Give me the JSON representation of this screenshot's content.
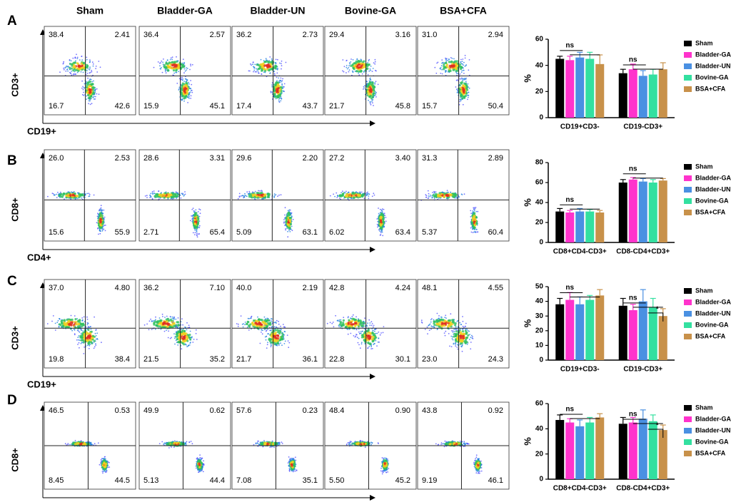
{
  "column_headers": [
    "Sham",
    "Bladder-GA",
    "Bladder-UN",
    "Bovine-GA",
    "BSA+CFA"
  ],
  "panels": [
    {
      "label": "A",
      "flow_y_label": "CD3+",
      "flow_x_label": "CD19+",
      "quadrants": [
        [
          "38.4",
          "2.41",
          "16.7",
          "42.6"
        ],
        [
          "36.4",
          "2.57",
          "15.9",
          "45.1"
        ],
        [
          "36.2",
          "2.73",
          "17.4",
          "43.7"
        ],
        [
          "29.4",
          "3.16",
          "21.7",
          "45.8"
        ],
        [
          "31.0",
          "2.94",
          "15.7",
          "50.4"
        ]
      ]
    },
    {
      "label": "B",
      "flow_y_label": "CD8+",
      "flow_x_label": "CD4+",
      "quadrants": [
        [
          "26.0",
          "2.53",
          "15.6",
          "55.9"
        ],
        [
          "28.6",
          "3.31",
          "2.71",
          "65.4"
        ],
        [
          "29.6",
          "2.20",
          "5.09",
          "63.1"
        ],
        [
          "27.2",
          "3.40",
          "6.02",
          "63.4"
        ],
        [
          "31.3",
          "2.89",
          "5.37",
          "60.4"
        ]
      ]
    },
    {
      "label": "C",
      "flow_y_label": "CD3+",
      "flow_x_label": "CD19+",
      "quadrants": [
        [
          "37.0",
          "4.80",
          "19.8",
          "38.4"
        ],
        [
          "36.2",
          "7.10",
          "21.5",
          "35.2"
        ],
        [
          "40.0",
          "2.19",
          "21.7",
          "36.1"
        ],
        [
          "42.8",
          "4.24",
          "22.8",
          "30.1"
        ],
        [
          "48.1",
          "4.55",
          "23.0",
          "24.3"
        ]
      ]
    },
    {
      "label": "D",
      "flow_y_label": "CD8+",
      "flow_x_label": "CD4+",
      "quadrants": [
        [
          "46.5",
          "0.53",
          "8.45",
          "44.5"
        ],
        [
          "49.9",
          "0.62",
          "5.13",
          "44.4"
        ],
        [
          "57.6",
          "0.23",
          "7.08",
          "35.1"
        ],
        [
          "48.4",
          "0.90",
          "5.50",
          "45.2"
        ],
        [
          "43.8",
          "0.92",
          "9.19",
          "46.1"
        ]
      ]
    }
  ],
  "chart_data": [
    {
      "type": "bar",
      "y_label": "%",
      "categories": [
        "CD19+CD3-",
        "CD19-CD3+"
      ],
      "ylim": [
        0,
        60
      ],
      "yticks": [
        0,
        20,
        40,
        60
      ],
      "annotations": [
        "ns",
        "ns"
      ],
      "series": [
        {
          "name": "Sham",
          "color": "#000000",
          "values": [
            45,
            34
          ],
          "errors": [
            2,
            3
          ]
        },
        {
          "name": "Bladder-GA",
          "color": "#ff33cc",
          "values": [
            44,
            37
          ],
          "errors": [
            3,
            4
          ]
        },
        {
          "name": "Bladder-UN",
          "color": "#4a90e2",
          "values": [
            46,
            32
          ],
          "errors": [
            4,
            4
          ]
        },
        {
          "name": "Bovine-GA",
          "color": "#33e0a0",
          "values": [
            45,
            33
          ],
          "errors": [
            5,
            4
          ]
        },
        {
          "name": "BSA+CFA",
          "color": "#c8914a",
          "values": [
            41,
            37
          ],
          "errors": [
            7,
            5
          ]
        }
      ]
    },
    {
      "type": "bar",
      "y_label": "%",
      "categories": [
        "CD8+CD4-CD3+",
        "CD8-CD4+CD3+"
      ],
      "ylim": [
        0,
        80
      ],
      "yticks": [
        0,
        20,
        40,
        60,
        80
      ],
      "annotations": [
        "ns",
        "ns"
      ],
      "series": [
        {
          "name": "Sham",
          "color": "#000000",
          "values": [
            31,
            60
          ],
          "errors": [
            3,
            3
          ]
        },
        {
          "name": "Bladder-GA",
          "color": "#ff33cc",
          "values": [
            30,
            63
          ],
          "errors": [
            2,
            2
          ]
        },
        {
          "name": "Bladder-UN",
          "color": "#4a90e2",
          "values": [
            31,
            61
          ],
          "errors": [
            3,
            3
          ]
        },
        {
          "name": "Bovine-GA",
          "color": "#33e0a0",
          "values": [
            31,
            60
          ],
          "errors": [
            2,
            3
          ]
        },
        {
          "name": "BSA+CFA",
          "color": "#c8914a",
          "values": [
            30,
            62
          ],
          "errors": [
            2,
            2
          ]
        }
      ]
    },
    {
      "type": "bar",
      "y_label": "%",
      "categories": [
        "CD19+CD3-",
        "CD19-CD3+"
      ],
      "ylim": [
        0,
        50
      ],
      "yticks": [
        0,
        10,
        20,
        30,
        40,
        50
      ],
      "annotations": [
        "ns",
        "ns",
        "*"
      ],
      "series": [
        {
          "name": "Sham",
          "color": "#000000",
          "values": [
            38,
            37
          ],
          "errors": [
            4,
            5
          ]
        },
        {
          "name": "Bladder-GA",
          "color": "#ff33cc",
          "values": [
            41,
            34
          ],
          "errors": [
            5,
            4
          ]
        },
        {
          "name": "Bladder-UN",
          "color": "#4a90e2",
          "values": [
            38,
            40
          ],
          "errors": [
            5,
            8
          ]
        },
        {
          "name": "Bovine-GA",
          "color": "#33e0a0",
          "values": [
            41,
            36
          ],
          "errors": [
            3,
            6
          ]
        },
        {
          "name": "BSA+CFA",
          "color": "#c8914a",
          "values": [
            44,
            30
          ],
          "errors": [
            4,
            5
          ]
        }
      ]
    },
    {
      "type": "bar",
      "y_label": "%",
      "categories": [
        "CD8+CD4-CD3+",
        "CD8-CD4+CD3+"
      ],
      "ylim": [
        0,
        60
      ],
      "yticks": [
        0,
        20,
        40,
        60
      ],
      "annotations": [
        "ns",
        "ns",
        "*"
      ],
      "series": [
        {
          "name": "Sham",
          "color": "#000000",
          "values": [
            47,
            44
          ],
          "errors": [
            4,
            5
          ]
        },
        {
          "name": "Bladder-GA",
          "color": "#ff33cc",
          "values": [
            45,
            45
          ],
          "errors": [
            3,
            4
          ]
        },
        {
          "name": "Bladder-UN",
          "color": "#4a90e2",
          "values": [
            42,
            48
          ],
          "errors": [
            5,
            7
          ]
        },
        {
          "name": "Bovine-GA",
          "color": "#33e0a0",
          "values": [
            45,
            46
          ],
          "errors": [
            4,
            5
          ]
        },
        {
          "name": "BSA+CFA",
          "color": "#c8914a",
          "values": [
            49,
            39
          ],
          "errors": [
            3,
            4
          ]
        }
      ]
    }
  ]
}
